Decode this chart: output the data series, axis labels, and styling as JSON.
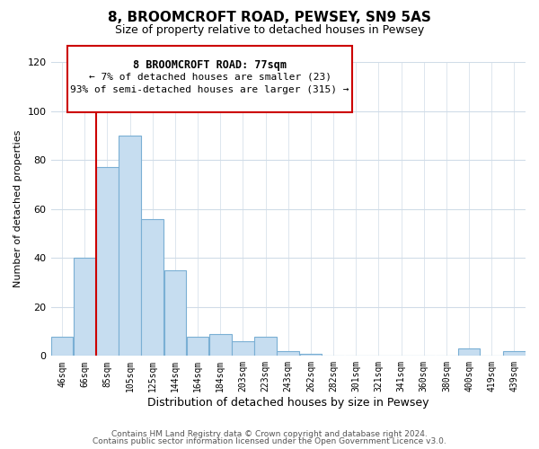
{
  "title": "8, BROOMCROFT ROAD, PEWSEY, SN9 5AS",
  "subtitle": "Size of property relative to detached houses in Pewsey",
  "xlabel": "Distribution of detached houses by size in Pewsey",
  "ylabel": "Number of detached properties",
  "bins": [
    "46sqm",
    "66sqm",
    "85sqm",
    "105sqm",
    "125sqm",
    "144sqm",
    "164sqm",
    "184sqm",
    "203sqm",
    "223sqm",
    "243sqm",
    "262sqm",
    "282sqm",
    "301sqm",
    "321sqm",
    "341sqm",
    "360sqm",
    "380sqm",
    "400sqm",
    "419sqm",
    "439sqm"
  ],
  "values": [
    8,
    40,
    77,
    90,
    56,
    35,
    8,
    9,
    6,
    8,
    2,
    1,
    0,
    0,
    0,
    0,
    0,
    0,
    3,
    0,
    2
  ],
  "bar_color": "#c6ddf0",
  "bar_edge_color": "#7aafd4",
  "ylim": [
    0,
    120
  ],
  "yticks": [
    0,
    20,
    40,
    60,
    80,
    100,
    120
  ],
  "marker_label": "8 BROOMCROFT ROAD: 77sqm",
  "annotation_line1": "← 7% of detached houses are smaller (23)",
  "annotation_line2": "93% of semi-detached houses are larger (315) →",
  "marker_color": "#cc0000",
  "footer_line1": "Contains HM Land Registry data © Crown copyright and database right 2024.",
  "footer_line2": "Contains public sector information licensed under the Open Government Licence v3.0.",
  "background_color": "#ffffff",
  "grid_color": "#d0dce8"
}
